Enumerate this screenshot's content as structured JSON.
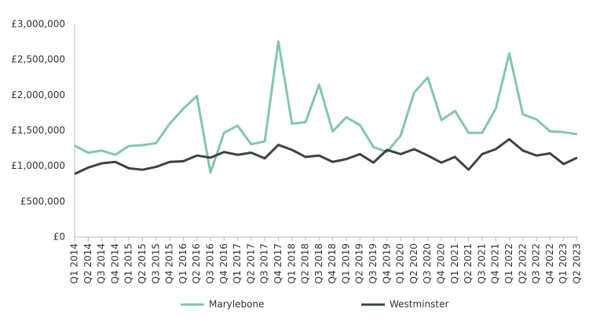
{
  "chart_data": {
    "type": "line",
    "categories": [
      "Q1 2014",
      "Q2 2014",
      "Q3 2014",
      "Q4 2014",
      "Q1 2015",
      "Q2 2015",
      "Q3 2015",
      "Q4 2015",
      "Q1 2016",
      "Q2 2016",
      "Q3 2016",
      "Q4 2016",
      "Q1 2017",
      "Q2 2017",
      "Q3 2017",
      "Q4 2017",
      "Q1 2018",
      "Q2 2018",
      "Q3 2018",
      "Q4 2018",
      "Q1 2019",
      "Q2 2019",
      "Q3 2019",
      "Q4 2019",
      "Q1 2020",
      "Q2 2020",
      "Q3 2020",
      "Q4 2020",
      "Q1 2021",
      "Q2 2021",
      "Q3 2021",
      "Q4 2021",
      "Q1 2022",
      "Q2 2022",
      "Q3 2022",
      "Q4 2022",
      "Q1 2023",
      "Q2 2023"
    ],
    "series": [
      {
        "name": "Marylebone",
        "color": "#82c6b0",
        "values": [
          1290000,
          1190000,
          1220000,
          1160000,
          1285000,
          1295000,
          1325000,
          1600000,
          1810000,
          1990000,
          910000,
          1470000,
          1570000,
          1310000,
          1350000,
          2760000,
          1600000,
          1620000,
          2150000,
          1490000,
          1690000,
          1580000,
          1270000,
          1200000,
          1430000,
          2040000,
          2250000,
          1650000,
          1780000,
          1470000,
          1470000,
          1810000,
          2590000,
          1730000,
          1660000,
          1490000,
          1480000,
          1450000
        ]
      },
      {
        "name": "Westminster",
        "color": "#3b4446",
        "values": [
          890000,
          980000,
          1040000,
          1060000,
          970000,
          950000,
          990000,
          1060000,
          1070000,
          1150000,
          1120000,
          1200000,
          1160000,
          1190000,
          1110000,
          1300000,
          1230000,
          1130000,
          1150000,
          1060000,
          1100000,
          1170000,
          1050000,
          1230000,
          1170000,
          1240000,
          1150000,
          1050000,
          1130000,
          950000,
          1170000,
          1240000,
          1380000,
          1220000,
          1150000,
          1180000,
          1030000,
          1120000
        ]
      }
    ],
    "ylim": [
      0,
      3000000
    ],
    "yticks": [
      {
        "value": 0,
        "label": "£0"
      },
      {
        "value": 500000,
        "label": "£500,000"
      },
      {
        "value": 1000000,
        "label": "£1,000,000"
      },
      {
        "value": 1500000,
        "label": "£1,500,000"
      },
      {
        "value": 2000000,
        "label": "£2,000,000"
      },
      {
        "value": 2500000,
        "label": "£2,500,000"
      },
      {
        "value": 3000000,
        "label": "£3,000,000"
      }
    ],
    "grid": false,
    "legend": "bottom"
  }
}
